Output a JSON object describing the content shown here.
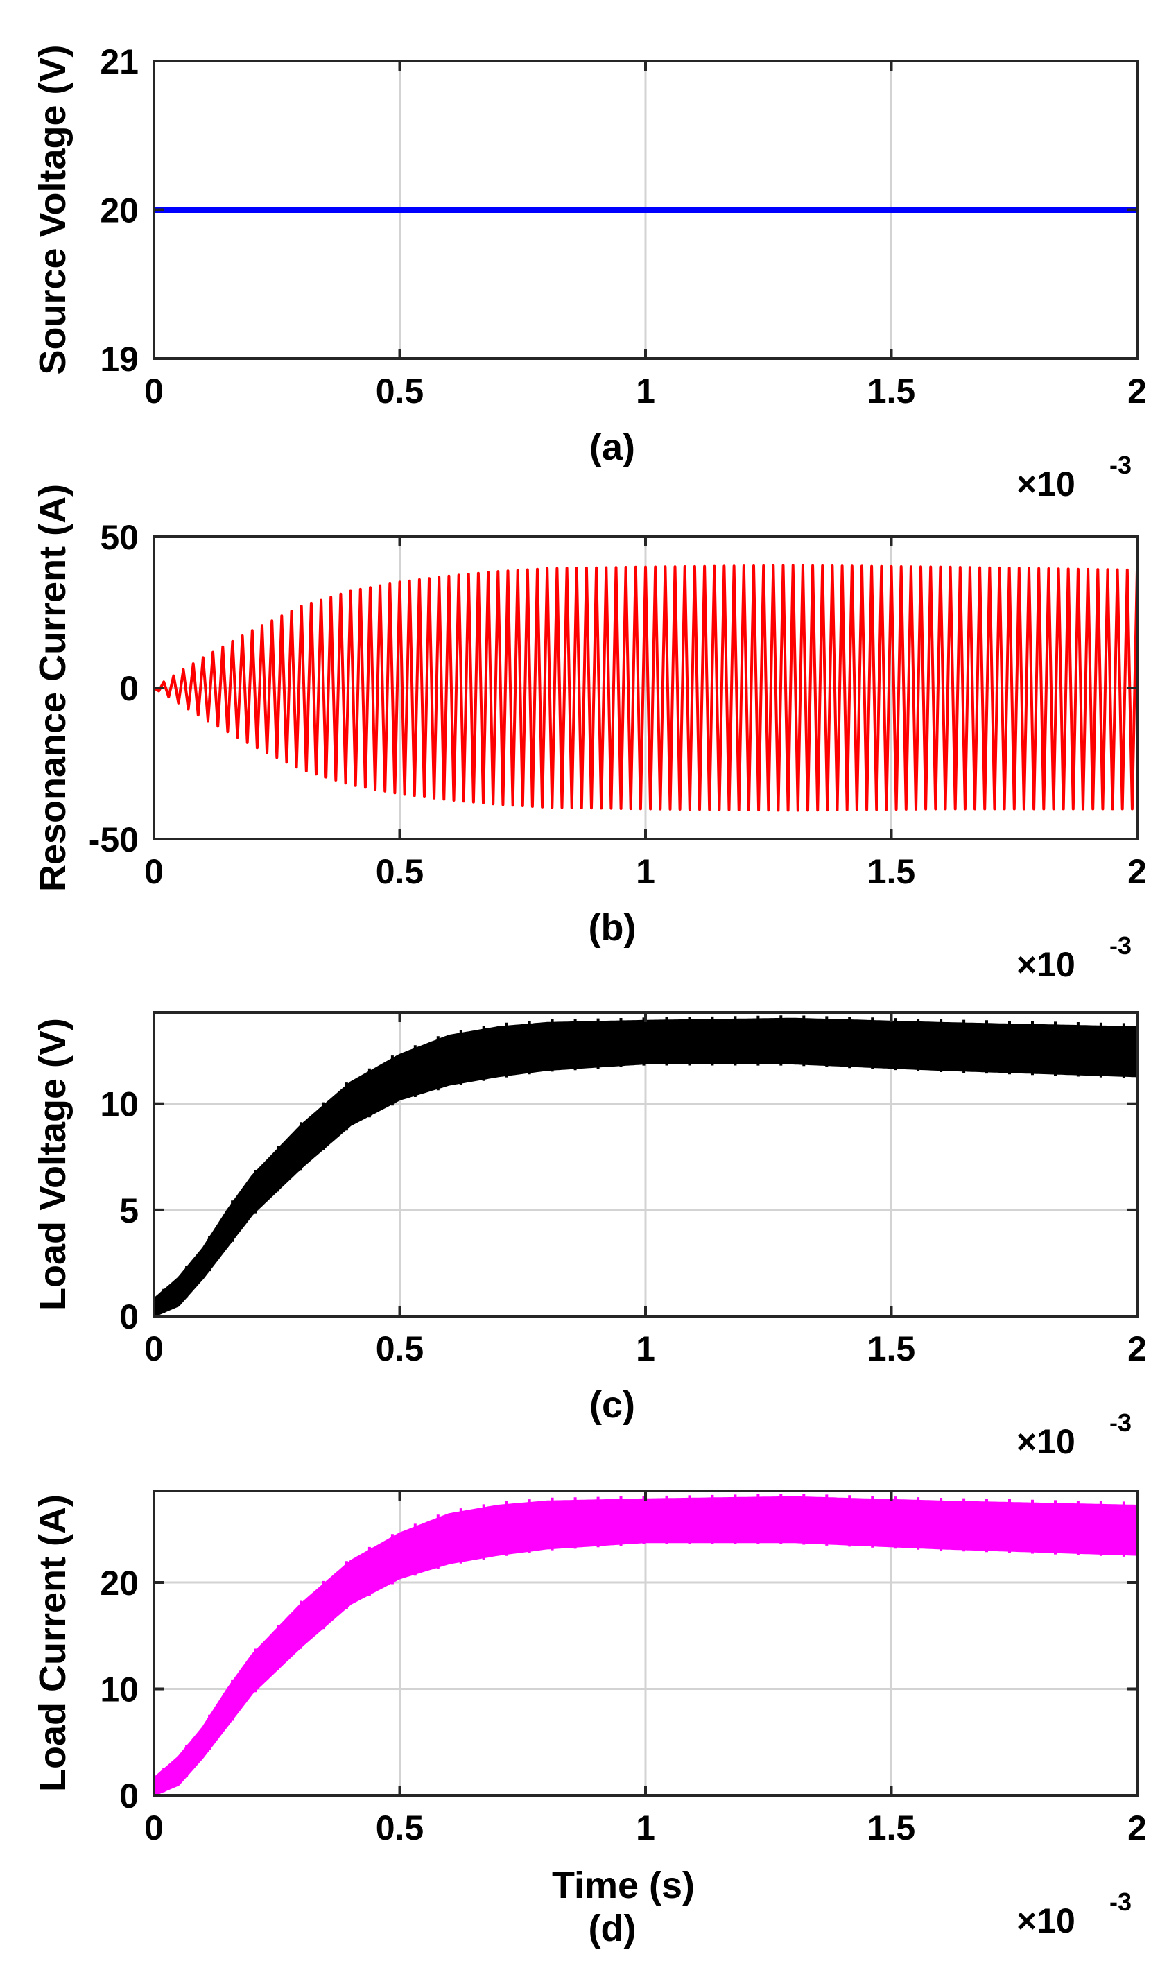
{
  "chart_data": [
    {
      "id": "a",
      "type": "line",
      "caption": "(a)",
      "ylabel": "Source Voltage (V)",
      "xlabel": "",
      "x_ticks": [
        "0",
        "0.5",
        "1",
        "1.5",
        "2"
      ],
      "x_tick_values": [
        0,
        0.5,
        1,
        1.5,
        2
      ],
      "y_ticks": [
        "19",
        "20",
        "21"
      ],
      "y_tick_values": [
        19,
        20,
        21
      ],
      "xlim": [
        0,
        2
      ],
      "ylim": [
        19,
        21
      ],
      "x_exponent_base": "×10",
      "x_exponent": "-3",
      "grid": true,
      "color": "#0000ff",
      "series": [
        {
          "name": "Source Voltage",
          "x": [
            0,
            2
          ],
          "y": [
            20,
            20
          ]
        }
      ]
    },
    {
      "id": "b",
      "type": "line",
      "caption": "(b)",
      "ylabel": "Resonance Current (A)",
      "xlabel": "",
      "x_ticks": [
        "0",
        "0.5",
        "1",
        "1.5",
        "2"
      ],
      "x_tick_values": [
        0,
        0.5,
        1,
        1.5,
        2
      ],
      "y_ticks": [
        "-50",
        "0",
        "50"
      ],
      "y_tick_values": [
        -50,
        0,
        50
      ],
      "xlim": [
        0,
        2
      ],
      "ylim": [
        -50,
        50
      ],
      "x_exponent_base": "×10",
      "x_exponent": "-3",
      "grid": true,
      "color": "#ff0000",
      "series": [
        {
          "name": "Resonance Current",
          "kind": "oscillation-envelope",
          "center": [
            [
              0,
              0
            ],
            [
              2,
              0
            ]
          ],
          "upper": [
            [
              0,
              0
            ],
            [
              0.1,
              10
            ],
            [
              0.2,
              19
            ],
            [
              0.3,
              27
            ],
            [
              0.4,
              32
            ],
            [
              0.5,
              35
            ],
            [
              0.6,
              37
            ],
            [
              0.7,
              38.5
            ],
            [
              0.8,
              39.5
            ],
            [
              1.0,
              40
            ],
            [
              1.3,
              40.5
            ],
            [
              1.6,
              40
            ],
            [
              2.0,
              39
            ]
          ],
          "lower": [
            [
              0,
              0
            ],
            [
              0.1,
              -10
            ],
            [
              0.2,
              -19
            ],
            [
              0.3,
              -27
            ],
            [
              0.4,
              -32
            ],
            [
              0.5,
              -35
            ],
            [
              0.6,
              -37
            ],
            [
              0.7,
              -38.5
            ],
            [
              0.8,
              -39.5
            ],
            [
              1.0,
              -40
            ],
            [
              1.3,
              -40.5
            ],
            [
              1.6,
              -40
            ],
            [
              2.0,
              -40
            ]
          ]
        }
      ]
    },
    {
      "id": "c",
      "type": "line",
      "caption": "(c)",
      "ylabel": "Load Voltage (V)",
      "xlabel": "",
      "x_ticks": [
        "0",
        "0.5",
        "1",
        "1.5",
        "2"
      ],
      "x_tick_values": [
        0,
        0.5,
        1,
        1.5,
        2
      ],
      "y_ticks": [
        "0",
        "5",
        "10"
      ],
      "y_tick_values": [
        0,
        5,
        10
      ],
      "xlim": [
        0,
        2
      ],
      "ylim": [
        0,
        14.3
      ],
      "x_exponent_base": "×10",
      "x_exponent": "-3",
      "grid": true,
      "color": "#000000",
      "series": [
        {
          "name": "Load Voltage",
          "kind": "ripple-band",
          "upper": [
            [
              0,
              0.8
            ],
            [
              0.05,
              1.8
            ],
            [
              0.1,
              3.2
            ],
            [
              0.15,
              5.0
            ],
            [
              0.2,
              6.6
            ],
            [
              0.3,
              9.0
            ],
            [
              0.4,
              11.0
            ],
            [
              0.5,
              12.3
            ],
            [
              0.6,
              13.2
            ],
            [
              0.7,
              13.6
            ],
            [
              0.8,
              13.8
            ],
            [
              1.0,
              13.9
            ],
            [
              1.3,
              14.0
            ],
            [
              1.6,
              13.8
            ],
            [
              2.0,
              13.6
            ]
          ],
          "lower": [
            [
              0,
              0
            ],
            [
              0.05,
              0.5
            ],
            [
              0.1,
              1.8
            ],
            [
              0.15,
              3.3
            ],
            [
              0.2,
              4.8
            ],
            [
              0.3,
              7.0
            ],
            [
              0.4,
              9.0
            ],
            [
              0.5,
              10.2
            ],
            [
              0.6,
              10.9
            ],
            [
              0.7,
              11.3
            ],
            [
              0.8,
              11.6
            ],
            [
              1.0,
              11.9
            ],
            [
              1.3,
              11.9
            ],
            [
              1.6,
              11.6
            ],
            [
              2.0,
              11.3
            ]
          ]
        }
      ]
    },
    {
      "id": "d",
      "type": "line",
      "caption": "(d)",
      "ylabel": "Load Current (A)",
      "xlabel": "Time (s)",
      "x_ticks": [
        "0",
        "0.5",
        "1",
        "1.5",
        "2"
      ],
      "x_tick_values": [
        0,
        0.5,
        1,
        1.5,
        2
      ],
      "y_ticks": [
        "0",
        "10",
        "20"
      ],
      "y_tick_values": [
        0,
        10,
        20
      ],
      "xlim": [
        0,
        2
      ],
      "ylim": [
        0,
        28.6
      ],
      "x_exponent_base": "×10",
      "x_exponent": "-3",
      "grid": true,
      "color": "#ff00ff",
      "series": [
        {
          "name": "Load Current",
          "kind": "ripple-band",
          "upper": [
            [
              0,
              1.6
            ],
            [
              0.05,
              3.6
            ],
            [
              0.1,
              6.4
            ],
            [
              0.15,
              10.0
            ],
            [
              0.2,
              13.2
            ],
            [
              0.3,
              18.0
            ],
            [
              0.4,
              22.0
            ],
            [
              0.5,
              24.6
            ],
            [
              0.6,
              26.4
            ],
            [
              0.7,
              27.2
            ],
            [
              0.8,
              27.6
            ],
            [
              1.0,
              27.8
            ],
            [
              1.3,
              28.0
            ],
            [
              1.6,
              27.6
            ],
            [
              2.0,
              27.2
            ]
          ],
          "lower": [
            [
              0,
              0
            ],
            [
              0.05,
              1.0
            ],
            [
              0.1,
              3.6
            ],
            [
              0.15,
              6.6
            ],
            [
              0.2,
              9.6
            ],
            [
              0.3,
              14.0
            ],
            [
              0.4,
              18.0
            ],
            [
              0.5,
              20.4
            ],
            [
              0.6,
              21.8
            ],
            [
              0.7,
              22.6
            ],
            [
              0.8,
              23.2
            ],
            [
              1.0,
              23.8
            ],
            [
              1.3,
              23.8
            ],
            [
              1.6,
              23.2
            ],
            [
              2.0,
              22.6
            ]
          ]
        }
      ]
    }
  ]
}
